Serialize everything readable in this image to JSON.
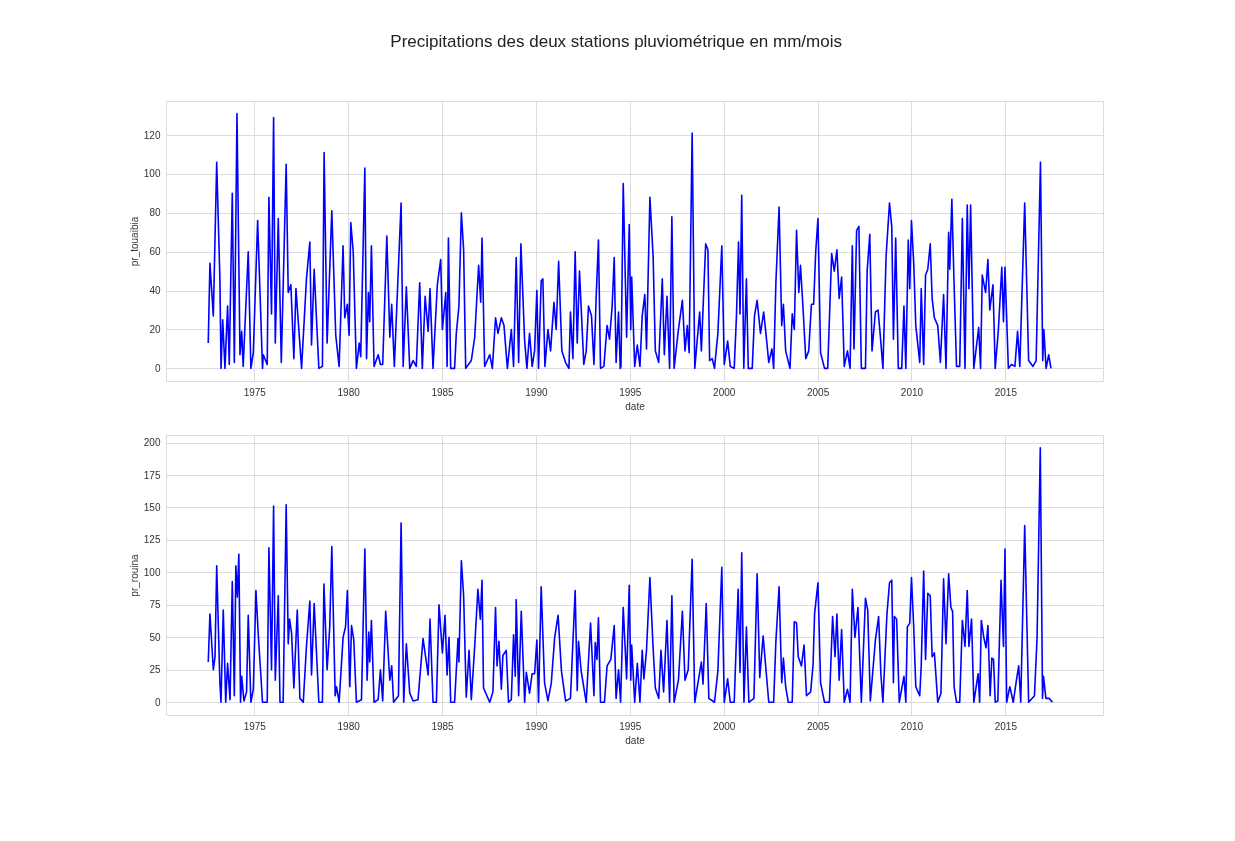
{
  "chart_data": [
    {
      "type": "line",
      "title": "Precipitations des deux stations pluviométrique en mm/mois",
      "xlabel": "date",
      "ylabel": "pr_touaibia",
      "xlim": [
        1970.3,
        2020.2
      ],
      "xticks": [
        1975,
        1980,
        1985,
        1990,
        1995,
        2000,
        2005,
        2010,
        2015
      ],
      "ylim": [
        -6.5,
        137.5
      ],
      "yticks": [
        0,
        20,
        40,
        60,
        80,
        100,
        120
      ],
      "grid": true,
      "series": [
        {
          "color": "#0000ff",
          "x": [
            1972.55,
            1972.64,
            1972.82,
            1973.0,
            1973.17,
            1973.23,
            1973.32,
            1973.44,
            1973.58,
            1973.67,
            1973.83,
            1973.94,
            1974.08,
            1974.24,
            1974.33,
            1974.41,
            1974.68,
            1974.82,
            1974.95,
            1975.18,
            1975.44,
            1975.48,
            1975.69,
            1975.78,
            1975.92,
            1976.03,
            1976.12,
            1976.28,
            1976.44,
            1976.7,
            1976.81,
            1976.95,
            1977.11,
            1977.22,
            1977.52,
            1977.78,
            1977.96,
            1978.05,
            1978.19,
            1978.44,
            1978.63,
            1978.72,
            1978.88,
            1979.13,
            1979.34,
            1979.52,
            1979.73,
            1979.82,
            1979.96,
            1980.05,
            1980.14,
            1980.27,
            1980.44,
            1980.59,
            1980.67,
            1980.89,
            1980.98,
            1981.08,
            1981.15,
            1981.24,
            1981.38,
            1981.6,
            1981.72,
            1981.84,
            1982.06,
            1982.22,
            1982.32,
            1982.46,
            1982.82,
            1982.93,
            1983.1,
            1983.28,
            1983.46,
            1983.63,
            1983.81,
            1983.95,
            1984.1,
            1984.26,
            1984.36,
            1984.52,
            1984.75,
            1984.93,
            1985.02,
            1985.2,
            1985.27,
            1985.34,
            1985.46,
            1985.67,
            1985.76,
            1985.9,
            1986.03,
            1986.15,
            1986.26,
            1986.56,
            1986.74,
            1986.95,
            1987.06,
            1987.13,
            1987.27,
            1987.54,
            1987.68,
            1987.85,
            1987.98,
            1988.16,
            1988.3,
            1988.48,
            1988.69,
            1988.81,
            1988.95,
            1989.08,
            1989.2,
            1989.4,
            1989.52,
            1989.66,
            1989.8,
            1989.93,
            1990.05,
            1990.14,
            1990.28,
            1990.37,
            1990.48,
            1990.64,
            1990.78,
            1990.96,
            1991.08,
            1991.21,
            1991.38,
            1991.58,
            1991.76,
            1991.84,
            1991.97,
            1992.09,
            1992.2,
            1992.32,
            1992.55,
            1992.68,
            1992.8,
            1992.96,
            1993.09,
            1993.21,
            1993.33,
            1993.44,
            1993.62,
            1993.79,
            1993.92,
            1994.06,
            1994.17,
            1994.27,
            1994.4,
            1994.49,
            1994.53,
            1994.65,
            1994.83,
            1994.97,
            1995.05,
            1995.1,
            1995.26,
            1995.4,
            1995.54,
            1995.66,
            1995.8,
            1995.89,
            1996.07,
            1996.24,
            1996.36,
            1996.54,
            1996.73,
            1996.84,
            1996.98,
            1997.12,
            1997.24,
            1997.36,
            1997.59,
            1997.8,
            1997.94,
            1998.06,
            1998.16,
            1998.32,
            1998.46,
            1998.72,
            1998.81,
            1999.04,
            1999.16,
            1999.25,
            1999.39,
            1999.51,
            1999.69,
            1999.9,
            2000.03,
            2000.21,
            2000.35,
            2000.56,
            2000.68,
            2000.79,
            2000.87,
            2000.96,
            2001.07,
            2001.21,
            2001.31,
            2001.52,
            2001.64,
            2001.78,
            2001.96,
            2002.13,
            2002.26,
            2002.4,
            2002.57,
            2002.66,
            2002.78,
            2002.95,
            2003.09,
            2003.18,
            2003.3,
            2003.53,
            2003.65,
            2003.76,
            2003.88,
            2004.0,
            2004.09,
            2004.23,
            2004.37,
            2004.53,
            2004.67,
            2004.79,
            2004.9,
            2005.02,
            2005.16,
            2005.37,
            2005.54,
            2005.75,
            2005.89,
            2006.03,
            2006.15,
            2006.28,
            2006.42,
            2006.59,
            2006.73,
            2006.85,
            2006.94,
            2007.08,
            2007.2,
            2007.33,
            2007.55,
            2007.64,
            2007.78,
            2007.9,
            2008.08,
            2008.22,
            2008.34,
            2008.48,
            2008.65,
            2008.83,
            2008.95,
            2009.04,
            2009.16,
            2009.3,
            2009.48,
            2009.6,
            2009.7,
            2009.83,
            2009.91,
            2010.0,
            2010.12,
            2010.23,
            2010.44,
            2010.52,
            2010.65,
            2010.75,
            2010.87,
            2011.0,
            2011.1,
            2011.22,
            2011.4,
            2011.54,
            2011.71,
            2011.84,
            2011.98,
            2012.04,
            2012.15,
            2012.27,
            2012.4,
            2012.57,
            2012.71,
            2012.85,
            2012.97,
            2013.06,
            2013.15,
            2013.32,
            2013.58,
            2013.68,
            2013.77,
            2013.95,
            2014.07,
            2014.17,
            2014.34,
            2014.46,
            2014.63,
            2014.81,
            2014.9,
            2014.98,
            2015.16,
            2015.33,
            2015.51,
            2015.65,
            2015.77,
            2016.03,
            2016.24,
            2016.47,
            2016.64,
            2016.87,
            2016.99,
            2017.05,
            2017.17,
            2017.31,
            2017.43
          ],
          "values": [
            13,
            54,
            27,
            106,
            46,
            0,
            25,
            0,
            32,
            2,
            90,
            3,
            131,
            7,
            19,
            1,
            60,
            0,
            8,
            76,
            0,
            7,
            2,
            88,
            28,
            129,
            13,
            77,
            3,
            105,
            39,
            43,
            5,
            41,
            0,
            46,
            65,
            12,
            51,
            0,
            1,
            111,
            13,
            81,
            17,
            1,
            63,
            26,
            33,
            17,
            75,
            60,
            0,
            13,
            6,
            103,
            5,
            39,
            24,
            63,
            1,
            7,
            2,
            2,
            68,
            16,
            33,
            1,
            85,
            1,
            42,
            0,
            4,
            1,
            44,
            0,
            37,
            19,
            41,
            0,
            43,
            56,
            20,
            39,
            1,
            67,
            0,
            0,
            18,
            32,
            80,
            61,
            0,
            4,
            16,
            53,
            34,
            67,
            1,
            7,
            0,
            26,
            18,
            26,
            22,
            0,
            20,
            1,
            57,
            3,
            64,
            14,
            0,
            18,
            1,
            9,
            40,
            0,
            45,
            46,
            1,
            20,
            9,
            34,
            20,
            55,
            9,
            3,
            0,
            29,
            5,
            60,
            13,
            50,
            2,
            9,
            32,
            27,
            2,
            37,
            66,
            0,
            1,
            22,
            15,
            32,
            57,
            3,
            29,
            0,
            1,
            95,
            16,
            74,
            20,
            47,
            1,
            12,
            1,
            27,
            38,
            10,
            88,
            58,
            9,
            3,
            46,
            7,
            37,
            0,
            78,
            0,
            20,
            35,
            9,
            22,
            8,
            121,
            0,
            29,
            9,
            64,
            61,
            4,
            5,
            0,
            18,
            63,
            2,
            14,
            1,
            0,
            27,
            65,
            28,
            89,
            0,
            46,
            0,
            0,
            27,
            35,
            18,
            29,
            17,
            3,
            10,
            0,
            44,
            83,
            22,
            33,
            9,
            0,
            28,
            20,
            71,
            39,
            53,
            30,
            5,
            9,
            33,
            33,
            60,
            77,
            8,
            0,
            0,
            59,
            50,
            61,
            36,
            47,
            1,
            9,
            0,
            63,
            10,
            71,
            73,
            0,
            0,
            50,
            69,
            9,
            29,
            30,
            17,
            0,
            58,
            85,
            73,
            15,
            67,
            0,
            0,
            32,
            0,
            66,
            41,
            76,
            54,
            22,
            3,
            41,
            2,
            48,
            51,
            64,
            36,
            26,
            22,
            3,
            38,
            0,
            70,
            51,
            87,
            43,
            1,
            1,
            77,
            0,
            84,
            41,
            84,
            0,
            21,
            0,
            48,
            39,
            56,
            30,
            43,
            0,
            20,
            52,
            24,
            52,
            0,
            2,
            1,
            19,
            1,
            85,
            4,
            1,
            4,
            106,
            4,
            20,
            0,
            7,
            0
          ]
        }
      ]
    },
    {
      "type": "line",
      "xlabel": "date",
      "ylabel": "pr_rouina",
      "xlim": [
        1970.3,
        2020.2
      ],
      "xticks": [
        1975,
        1980,
        1985,
        1990,
        1995,
        2000,
        2005,
        2010,
        2015
      ],
      "ylim": [
        -9.8,
        205.8
      ],
      "yticks": [
        0,
        25,
        50,
        75,
        100,
        125,
        150,
        175,
        200
      ],
      "grid": true,
      "series": [
        {
          "color": "#0000ff",
          "x": [
            1972.55,
            1972.64,
            1972.82,
            1972.91,
            1973.0,
            1973.17,
            1973.23,
            1973.35,
            1973.48,
            1973.58,
            1973.71,
            1973.83,
            1973.94,
            1974.02,
            1974.1,
            1974.18,
            1974.27,
            1974.33,
            1974.45,
            1974.59,
            1974.68,
            1974.82,
            1974.95,
            1975.09,
            1975.21,
            1975.44,
            1975.69,
            1975.78,
            1975.92,
            1976.03,
            1976.12,
            1976.28,
            1976.37,
            1976.54,
            1976.7,
            1976.81,
            1976.88,
            1976.99,
            1977.11,
            1977.29,
            1977.43,
            1977.61,
            1977.78,
            1977.96,
            1978.05,
            1978.19,
            1978.44,
            1978.63,
            1978.71,
            1978.88,
            1979.02,
            1979.13,
            1979.31,
            1979.38,
            1979.52,
            1979.73,
            1979.86,
            1979.96,
            1980.09,
            1980.18,
            1980.3,
            1980.44,
            1980.71,
            1980.89,
            1981.01,
            1981.1,
            1981.15,
            1981.24,
            1981.38,
            1981.6,
            1981.72,
            1981.84,
            1982.0,
            1982.22,
            1982.32,
            1982.42,
            1982.68,
            1982.82,
            1982.96,
            1983.1,
            1983.28,
            1983.46,
            1983.72,
            1983.99,
            1984.26,
            1984.36,
            1984.52,
            1984.7,
            1984.84,
            1985.02,
            1985.16,
            1985.27,
            1985.37,
            1985.46,
            1985.67,
            1985.85,
            1985.9,
            1986.03,
            1986.15,
            1986.29,
            1986.44,
            1986.56,
            1986.74,
            1986.91,
            1987.04,
            1987.13,
            1987.21,
            1987.54,
            1987.71,
            1987.85,
            1987.93,
            1988.03,
            1988.16,
            1988.24,
            1988.42,
            1988.54,
            1988.69,
            1988.81,
            1988.9,
            1988.95,
            1989.08,
            1989.22,
            1989.4,
            1989.49,
            1989.66,
            1989.8,
            1989.93,
            1990.05,
            1990.14,
            1990.28,
            1990.46,
            1990.64,
            1990.82,
            1991.0,
            1991.18,
            1991.36,
            1991.58,
            1991.84,
            1992.09,
            1992.2,
            1992.27,
            1992.41,
            1992.68,
            1992.91,
            1993.09,
            1993.16,
            1993.25,
            1993.33,
            1993.44,
            1993.65,
            1993.79,
            1993.99,
            1994.17,
            1994.27,
            1994.4,
            1994.51,
            1994.65,
            1994.83,
            1994.97,
            1995.05,
            1995.1,
            1995.26,
            1995.4,
            1995.54,
            1995.66,
            1995.75,
            1995.89,
            1996.07,
            1996.24,
            1996.36,
            1996.54,
            1996.66,
            1996.8,
            1996.98,
            1997.12,
            1997.24,
            1997.36,
            1997.59,
            1997.8,
            1997.94,
            1998.11,
            1998.32,
            1998.46,
            1998.81,
            1998.9,
            1999.07,
            1999.21,
            1999.51,
            1999.69,
            1999.9,
            2000.03,
            2000.21,
            2000.35,
            2000.56,
            2000.77,
            2000.87,
            2000.96,
            2001.08,
            2001.21,
            2001.34,
            2001.61,
            2001.78,
            2001.92,
            2002.1,
            2002.4,
            2002.66,
            2002.78,
            2002.95,
            2003.09,
            2003.18,
            2003.3,
            2003.44,
            2003.65,
            2003.76,
            2003.88,
            2003.97,
            2004.14,
            2004.28,
            2004.41,
            2004.63,
            2004.76,
            2004.84,
            2005.02,
            2005.16,
            2005.37,
            2005.63,
            2005.8,
            2005.93,
            2006.03,
            2006.15,
            2006.28,
            2006.42,
            2006.59,
            2006.73,
            2006.85,
            2006.99,
            2007.15,
            2007.33,
            2007.55,
            2007.67,
            2007.81,
            2008.08,
            2008.25,
            2008.37,
            2008.48,
            2008.69,
            2008.83,
            2008.95,
            2009.04,
            2009.09,
            2009.21,
            2009.35,
            2009.6,
            2009.7,
            2009.78,
            2009.91,
            2010.0,
            2010.12,
            2010.23,
            2010.44,
            2010.52,
            2010.65,
            2010.75,
            2010.87,
            2011.0,
            2011.1,
            2011.22,
            2011.4,
            2011.57,
            2011.71,
            2011.84,
            2011.98,
            2012.1,
            2012.19,
            2012.27,
            2012.4,
            2012.57,
            2012.71,
            2012.85,
            2012.97,
            2013.06,
            2013.2,
            2013.32,
            2013.55,
            2013.63,
            2013.72,
            2013.85,
            2013.97,
            2014.07,
            2014.19,
            2014.28,
            2014.37,
            2014.46,
            2014.6,
            2014.77,
            2014.9,
            2014.98,
            2015.07,
            2015.24,
            2015.42,
            2015.59,
            2015.71,
            2015.82,
            2016.03,
            2016.24,
            2016.55,
            2016.69,
            2016.86,
            2016.98,
            2017.03,
            2017.16,
            2017.33,
            2017.51
          ],
          "values": [
            31,
            68,
            25,
            35,
            105,
            15,
            0,
            71,
            0,
            30,
            2,
            93,
            5,
            105,
            81,
            114,
            0,
            20,
            1,
            8,
            67,
            0,
            10,
            86,
            53,
            0,
            0,
            119,
            25,
            151,
            17,
            82,
            0,
            0,
            152,
            45,
            64,
            53,
            11,
            71,
            3,
            0,
            43,
            78,
            21,
            76,
            0,
            0,
            91,
            25,
            58,
            120,
            5,
            12,
            0,
            50,
            58,
            86,
            12,
            59,
            48,
            0,
            2,
            118,
            17,
            54,
            31,
            63,
            0,
            2,
            25,
            1,
            70,
            17,
            28,
            0,
            5,
            138,
            0,
            45,
            7,
            1,
            2,
            49,
            21,
            64,
            0,
            0,
            75,
            38,
            67,
            21,
            50,
            0,
            0,
            49,
            31,
            109,
            82,
            4,
            40,
            2,
            43,
            87,
            64,
            94,
            11,
            0,
            8,
            73,
            28,
            47,
            10,
            36,
            40,
            0,
            2,
            52,
            20,
            79,
            5,
            70,
            0,
            23,
            7,
            22,
            22,
            48,
            0,
            89,
            15,
            1,
            15,
            50,
            67,
            24,
            1,
            3,
            86,
            9,
            47,
            24,
            0,
            61,
            5,
            46,
            33,
            65,
            0,
            0,
            28,
            33,
            59,
            3,
            25,
            0,
            73,
            18,
            90,
            17,
            44,
            0,
            30,
            0,
            40,
            18,
            40,
            96,
            42,
            11,
            3,
            40,
            8,
            63,
            0,
            82,
            0,
            17,
            70,
            17,
            25,
            110,
            0,
            31,
            14,
            76,
            3,
            0,
            24,
            104,
            0,
            18,
            0,
            0,
            87,
            23,
            115,
            0,
            58,
            0,
            3,
            99,
            19,
            51,
            0,
            0,
            47,
            89,
            15,
            34,
            12,
            0,
            0,
            62,
            61,
            35,
            28,
            44,
            5,
            8,
            29,
            68,
            92,
            15,
            0,
            0,
            66,
            35,
            68,
            17,
            56,
            0,
            10,
            0,
            87,
            50,
            73,
            0,
            80,
            71,
            1,
            48,
            66,
            22,
            0,
            67,
            92,
            94,
            15,
            66,
            64,
            0,
            20,
            0,
            58,
            61,
            96,
            58,
            12,
            5,
            28,
            101,
            33,
            84,
            82,
            35,
            38,
            0,
            7,
            95,
            45,
            99,
            73,
            70,
            12,
            0,
            0,
            63,
            43,
            86,
            43,
            64,
            0,
            22,
            0,
            63,
            50,
            42,
            59,
            5,
            34,
            33,
            0,
            1,
            94,
            43,
            118,
            0,
            12,
            0,
            17,
            28,
            0,
            136,
            0,
            5,
            50,
            196,
            3,
            20,
            3,
            3,
            0
          ]
        }
      ]
    }
  ]
}
